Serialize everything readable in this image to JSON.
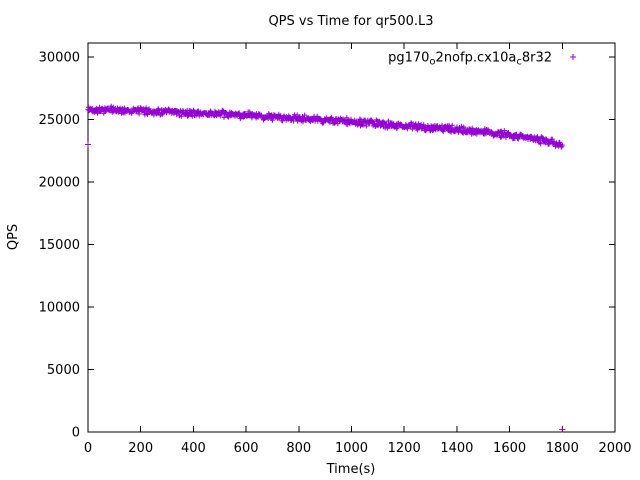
{
  "page": {
    "background": "#ffffff"
  },
  "chart_data": {
    "type": "scatter",
    "marker": "plus",
    "series_color": "#9400d3",
    "axis_color": "#000000",
    "title": "QPS vs Time for qr500.L3",
    "xlabel": "Time(s)",
    "ylabel": "QPS",
    "xlim": [
      0,
      2000
    ],
    "ylim": [
      0,
      31120
    ],
    "xticks": [
      0,
      200,
      400,
      600,
      800,
      1000,
      1200,
      1400,
      1600,
      1800,
      2000
    ],
    "yticks": [
      0,
      5000,
      10000,
      15000,
      20000,
      25000,
      30000
    ],
    "grid": false,
    "legend": {
      "position": "top-right",
      "label_plain": "pg170_o2nofp.cx10a_c8r32",
      "label_parts": [
        {
          "text": "pg170",
          "sub": false
        },
        {
          "text": "o",
          "sub": true
        },
        {
          "text": "2nofp.cx10a",
          "sub": false
        },
        {
          "text": "c",
          "sub": true
        },
        {
          "text": "8r32",
          "sub": false
        }
      ]
    },
    "series": [
      {
        "name": "pg170_o2nofp.cx10a_c8r32",
        "x_sample": [
          0,
          100,
          200,
          300,
          400,
          500,
          600,
          700,
          800,
          900,
          1000,
          1100,
          1200,
          1300,
          1400,
          1500,
          1600,
          1700,
          1800
        ],
        "y_mean": [
          25800,
          25760,
          25690,
          25600,
          25520,
          25430,
          25330,
          25210,
          25080,
          24950,
          24810,
          24660,
          24510,
          24360,
          24200,
          24000,
          23760,
          23450,
          23000
        ],
        "noise_amplitude": 330,
        "sample_interval_s": 2,
        "outliers": [
          [
            0,
            23000
          ],
          [
            1800,
            200
          ]
        ]
      }
    ]
  }
}
